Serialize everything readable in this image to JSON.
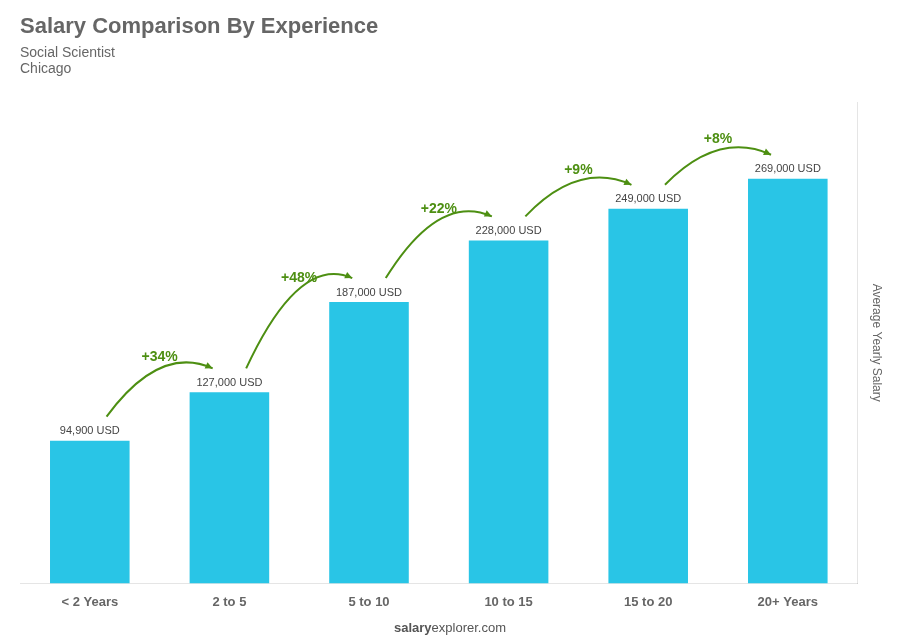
{
  "chart_data": {
    "type": "bar",
    "title": "Salary Comparison By Experience",
    "subtitle": [
      "Social Scientist",
      "Chicago"
    ],
    "categories": [
      "< 2 Years",
      "2 to 5",
      "5 to 10",
      "10 to 15",
      "15 to 20",
      "20+ Years"
    ],
    "values": [
      94900,
      127000,
      187000,
      228000,
      249000,
      269000
    ],
    "value_labels": [
      "94,900 USD",
      "127,000 USD",
      "187,000 USD",
      "228,000 USD",
      "249,000 USD",
      "269,000 USD"
    ],
    "data_labels": true,
    "color": "#29c5e6",
    "ylabel": "Average Yearly Salary",
    "ylim": [
      0,
      320000
    ],
    "tick_labels": "x",
    "grid": false,
    "annotations": [
      {
        "text": "+34%",
        "from": "< 2 Years",
        "to": "2 to 5"
      },
      {
        "text": "+48%",
        "from": "2 to 5",
        "to": "5 to 10"
      },
      {
        "text": "+22%",
        "from": "5 to 10",
        "to": "10 to 15"
      },
      {
        "text": "+9%",
        "from": "10 to 15",
        "to": "15 to 20"
      },
      {
        "text": "+8%",
        "from": "15 to 20",
        "to": "20+ Years"
      }
    ],
    "footer": [
      "salary",
      "explorer.com"
    ]
  }
}
